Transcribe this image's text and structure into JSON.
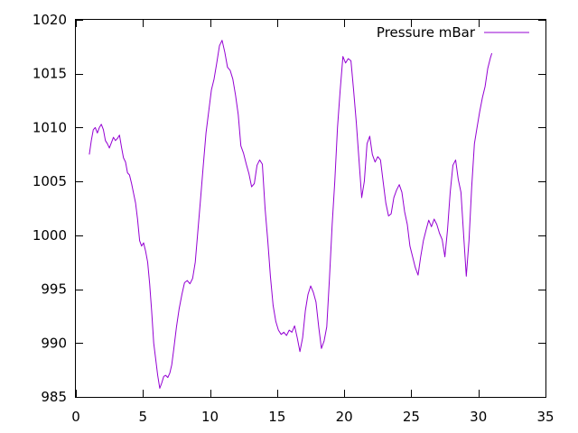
{
  "chart_data": {
    "type": "line",
    "title": "",
    "xlabel": "",
    "ylabel": "",
    "xlim": [
      0,
      35
    ],
    "ylim": [
      985,
      1020
    ],
    "x_ticks": [
      0,
      5,
      10,
      15,
      20,
      25,
      30,
      35
    ],
    "y_ticks": [
      985,
      990,
      995,
      1000,
      1005,
      1010,
      1015,
      1020
    ],
    "grid": false,
    "legend_position": "top-right",
    "colors": {
      "series": "#9400d3",
      "axes": "#000000",
      "background": "#ffffff"
    },
    "series": [
      {
        "name": "Pressure mBar",
        "x": [
          1.0,
          1.15,
          1.3,
          1.45,
          1.6,
          1.75,
          1.9,
          2.05,
          2.2,
          2.35,
          2.5,
          2.65,
          2.8,
          2.95,
          3.1,
          3.25,
          3.4,
          3.55,
          3.7,
          3.85,
          4.0,
          4.15,
          4.3,
          4.45,
          4.6,
          4.75,
          4.9,
          5.05,
          5.2,
          5.35,
          5.5,
          5.65,
          5.8,
          5.95,
          6.1,
          6.25,
          6.4,
          6.55,
          6.7,
          6.85,
          7.0,
          7.15,
          7.3,
          7.5,
          7.7,
          7.9,
          8.1,
          8.3,
          8.5,
          8.7,
          8.9,
          9.1,
          9.3,
          9.5,
          9.7,
          9.9,
          10.1,
          10.3,
          10.5,
          10.7,
          10.9,
          11.1,
          11.3,
          11.5,
          11.7,
          11.9,
          12.1,
          12.3,
          12.5,
          12.7,
          12.9,
          13.1,
          13.3,
          13.5,
          13.7,
          13.9,
          14.1,
          14.3,
          14.5,
          14.7,
          14.9,
          15.1,
          15.3,
          15.5,
          15.7,
          15.9,
          16.1,
          16.3,
          16.5,
          16.7,
          16.9,
          17.1,
          17.3,
          17.5,
          17.7,
          17.9,
          18.1,
          18.3,
          18.5,
          18.7,
          18.9,
          19.1,
          19.3,
          19.5,
          19.7,
          19.9,
          20.1,
          20.3,
          20.5,
          20.7,
          20.9,
          21.1,
          21.3,
          21.5,
          21.7,
          21.9,
          22.1,
          22.3,
          22.5,
          22.7,
          22.9,
          23.1,
          23.3,
          23.5,
          23.7,
          23.9,
          24.1,
          24.3,
          24.5,
          24.7,
          24.9,
          25.1,
          25.3,
          25.5,
          25.7,
          25.9,
          26.1,
          26.3,
          26.5,
          26.7,
          26.9,
          27.1,
          27.3,
          27.5,
          27.7,
          27.9,
          28.1,
          28.3,
          28.5,
          28.7,
          28.9,
          29.1,
          29.3,
          29.5,
          29.7,
          29.9,
          30.1,
          30.3,
          30.5,
          30.7,
          30.9,
          31.0
        ],
        "y": [
          1007.5,
          1008.8,
          1009.8,
          1010.0,
          1009.5,
          1010.0,
          1010.3,
          1009.8,
          1008.8,
          1008.5,
          1008.1,
          1008.6,
          1009.1,
          1008.8,
          1009.0,
          1009.3,
          1008.2,
          1007.2,
          1006.8,
          1005.8,
          1005.6,
          1004.8,
          1003.9,
          1003.0,
          1001.5,
          999.5,
          999.0,
          999.3,
          998.5,
          997.5,
          995.5,
          993.0,
          990.0,
          988.5,
          987.0,
          985.8,
          986.3,
          986.9,
          987.0,
          986.8,
          987.2,
          988.0,
          989.5,
          991.5,
          993.2,
          994.5,
          995.6,
          995.8,
          995.5,
          996.0,
          997.5,
          1000.5,
          1003.5,
          1006.5,
          1009.5,
          1011.5,
          1013.5,
          1014.5,
          1016.0,
          1017.6,
          1018.1,
          1017.0,
          1015.6,
          1015.3,
          1014.5,
          1013.0,
          1011.2,
          1008.3,
          1007.6,
          1006.6,
          1005.7,
          1004.5,
          1004.8,
          1006.5,
          1007.0,
          1006.6,
          1002.5,
          999.5,
          996.2,
          993.5,
          992.0,
          991.2,
          990.8,
          991.0,
          990.7,
          991.2,
          991.0,
          991.6,
          990.5,
          989.2,
          990.5,
          993.0,
          994.5,
          995.3,
          994.7,
          993.8,
          991.5,
          989.5,
          990.2,
          991.5,
          996.0,
          1001.0,
          1005.0,
          1010.0,
          1013.5,
          1016.6,
          1016.0,
          1016.4,
          1016.2,
          1013.5,
          1010.5,
          1007.0,
          1003.5,
          1005.0,
          1008.5,
          1009.2,
          1007.5,
          1006.8,
          1007.3,
          1007.0,
          1005.0,
          1003.0,
          1001.8,
          1002.0,
          1003.5,
          1004.2,
          1004.7,
          1004.0,
          1002.2,
          1001.0,
          999.0,
          998.0,
          997.0,
          996.3,
          998.0,
          999.5,
          1000.5,
          1001.4,
          1000.8,
          1001.5,
          1001.0,
          1000.2,
          999.6,
          998.0,
          1000.5,
          1004.0,
          1006.5,
          1007.0,
          1005.2,
          1004.0,
          1000.0,
          996.2,
          999.5,
          1004.5,
          1008.5,
          1010.0,
          1011.5,
          1012.8,
          1013.8,
          1015.5,
          1016.5,
          1016.9
        ]
      }
    ]
  }
}
